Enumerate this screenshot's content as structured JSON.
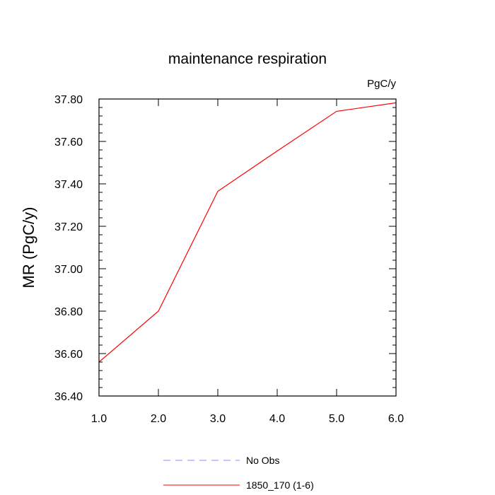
{
  "chart_data": {
    "type": "line",
    "title": "maintenance respiration",
    "units_label": "PgC/y",
    "xlabel": "",
    "ylabel": "MR  (PgC/y)",
    "xlim": [
      1.0,
      6.0
    ],
    "ylim": [
      36.4,
      37.8
    ],
    "xticks": [
      "1.0",
      "2.0",
      "3.0",
      "4.0",
      "5.0",
      "6.0"
    ],
    "yticks": [
      "36.40",
      "36.60",
      "36.80",
      "37.00",
      "37.20",
      "37.40",
      "37.60",
      "37.80"
    ],
    "series": [
      {
        "name": "1850_170 (1-6)",
        "color": "#ff0000",
        "style": "solid",
        "x": [
          1.0,
          2.0,
          3.0,
          4.0,
          5.0,
          6.0
        ],
        "y": [
          36.56,
          36.8,
          37.365,
          37.555,
          37.742,
          37.782
        ]
      }
    ],
    "legend": [
      {
        "label": "No Obs",
        "color": "#8888ff",
        "style": "dashed"
      },
      {
        "label": "1850_170 (1-6)",
        "color": "#ff0000",
        "style": "solid"
      }
    ],
    "legend_position": "bottom-center"
  }
}
